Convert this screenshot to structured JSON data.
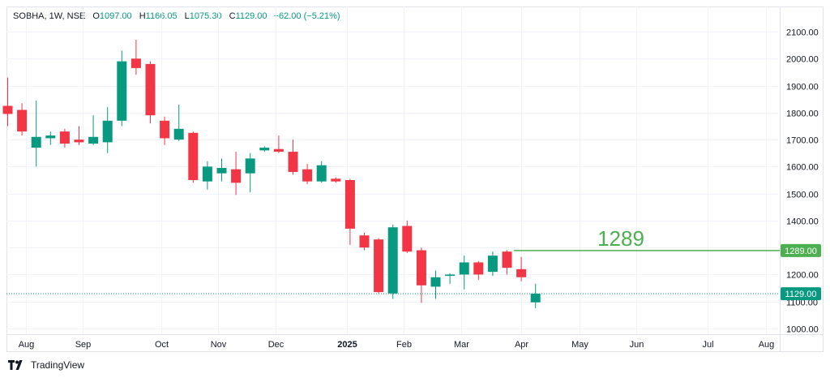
{
  "header": {
    "symbol": "SOBHA, 1W, NSE",
    "open_label": "O",
    "open": "1097.00",
    "high_label": "H",
    "high": "1166.05",
    "low_label": "L",
    "low": "1075.30",
    "close_label": "C",
    "close": "1129.00",
    "change": "−62.00 (−5.21%)"
  },
  "footer": {
    "brand": "TradingView"
  },
  "colors": {
    "up": "#089981",
    "down": "#f23645",
    "level": "#4caf50",
    "grid": "#f0f3fa",
    "price_line": "#089981"
  },
  "chart_data": {
    "type": "candlestick",
    "interval": "1W",
    "ylim": [
      960,
      2140
    ],
    "y_ticks": [
      "1000.00",
      "1100.00",
      "1200.00",
      "1300.00",
      "1400.00",
      "1500.00",
      "1600.00",
      "1700.00",
      "1800.00",
      "1900.00",
      "2000.00",
      "2100.00"
    ],
    "x_ticks": [
      {
        "label": "Aug",
        "index": 1.3
      },
      {
        "label": "Sep",
        "index": 5.3
      },
      {
        "label": "Oct",
        "index": 10.8
      },
      {
        "label": "Nov",
        "index": 14.8
      },
      {
        "label": "Dec",
        "index": 18.8
      },
      {
        "label": "2025",
        "index": 23.8,
        "bold": true
      },
      {
        "label": "Feb",
        "index": 27.8
      },
      {
        "label": "Mar",
        "index": 31.8
      },
      {
        "label": "Apr",
        "index": 36.0
      },
      {
        "label": "May",
        "index": 40.1
      },
      {
        "label": "Jun",
        "index": 44.1
      },
      {
        "label": "Jul",
        "index": 49.1
      },
      {
        "label": "Aug",
        "index": 53.2
      }
    ],
    "candles": [
      {
        "o": 1825,
        "h": 1930,
        "l": 1750,
        "c": 1795
      },
      {
        "o": 1810,
        "h": 1835,
        "l": 1715,
        "c": 1730
      },
      {
        "o": 1670,
        "h": 1845,
        "l": 1600,
        "c": 1710
      },
      {
        "o": 1705,
        "h": 1730,
        "l": 1680,
        "c": 1715
      },
      {
        "o": 1730,
        "h": 1740,
        "l": 1670,
        "c": 1685
      },
      {
        "o": 1700,
        "h": 1750,
        "l": 1680,
        "c": 1690
      },
      {
        "o": 1685,
        "h": 1790,
        "l": 1680,
        "c": 1710
      },
      {
        "o": 1690,
        "h": 1820,
        "l": 1650,
        "c": 1770
      },
      {
        "o": 1770,
        "h": 2030,
        "l": 1750,
        "c": 1990
      },
      {
        "o": 2000,
        "h": 2070,
        "l": 1940,
        "c": 1965
      },
      {
        "o": 1980,
        "h": 1990,
        "l": 1760,
        "c": 1790
      },
      {
        "o": 1770,
        "h": 1785,
        "l": 1680,
        "c": 1705
      },
      {
        "o": 1700,
        "h": 1830,
        "l": 1695,
        "c": 1740
      },
      {
        "o": 1725,
        "h": 1730,
        "l": 1540,
        "c": 1550
      },
      {
        "o": 1545,
        "h": 1620,
        "l": 1515,
        "c": 1600
      },
      {
        "o": 1575,
        "h": 1630,
        "l": 1545,
        "c": 1595
      },
      {
        "o": 1590,
        "h": 1655,
        "l": 1495,
        "c": 1540
      },
      {
        "o": 1575,
        "h": 1650,
        "l": 1505,
        "c": 1630
      },
      {
        "o": 1660,
        "h": 1675,
        "l": 1655,
        "c": 1670
      },
      {
        "o": 1665,
        "h": 1715,
        "l": 1650,
        "c": 1655
      },
      {
        "o": 1655,
        "h": 1700,
        "l": 1570,
        "c": 1580
      },
      {
        "o": 1590,
        "h": 1610,
        "l": 1535,
        "c": 1545
      },
      {
        "o": 1545,
        "h": 1620,
        "l": 1540,
        "c": 1605
      },
      {
        "o": 1555,
        "h": 1560,
        "l": 1540,
        "c": 1545
      },
      {
        "o": 1550,
        "h": 1555,
        "l": 1310,
        "c": 1370
      },
      {
        "o": 1345,
        "h": 1355,
        "l": 1290,
        "c": 1300
      },
      {
        "o": 1330,
        "h": 1335,
        "l": 1130,
        "c": 1135
      },
      {
        "o": 1130,
        "h": 1385,
        "l": 1110,
        "c": 1375
      },
      {
        "o": 1380,
        "h": 1400,
        "l": 1280,
        "c": 1285
      },
      {
        "o": 1290,
        "h": 1300,
        "l": 1095,
        "c": 1160
      },
      {
        "o": 1155,
        "h": 1215,
        "l": 1110,
        "c": 1190
      },
      {
        "o": 1195,
        "h": 1205,
        "l": 1165,
        "c": 1200
      },
      {
        "o": 1200,
        "h": 1270,
        "l": 1145,
        "c": 1245
      },
      {
        "o": 1245,
        "h": 1250,
        "l": 1180,
        "c": 1200
      },
      {
        "o": 1210,
        "h": 1285,
        "l": 1195,
        "c": 1270
      },
      {
        "o": 1285,
        "h": 1290,
        "l": 1200,
        "c": 1225
      },
      {
        "o": 1220,
        "h": 1265,
        "l": 1175,
        "c": 1190
      },
      {
        "o": 1097,
        "h": 1166.05,
        "l": 1075.3,
        "c": 1129
      }
    ],
    "level": {
      "value": 1289,
      "label": "1289",
      "axis_label": "1289.00"
    },
    "last_price": {
      "value": 1129,
      "axis_label": "1129.00"
    }
  }
}
